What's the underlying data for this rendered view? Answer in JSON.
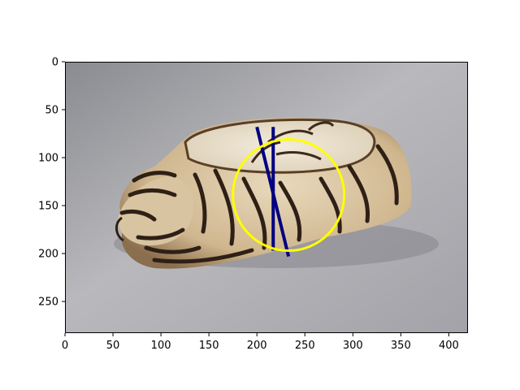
{
  "chart_data": {
    "type": "scatter",
    "title": "",
    "xlabel": "",
    "ylabel": "",
    "xlim": [
      0,
      420
    ],
    "ylim": [
      283,
      0
    ],
    "y_inverted": true,
    "x_ticks": [
      0,
      50,
      100,
      150,
      200,
      250,
      300,
      350,
      400
    ],
    "y_ticks": [
      0,
      50,
      100,
      150,
      200,
      250
    ],
    "grid": false,
    "legend": "none",
    "background_image": {
      "description_name": "ceramic-tiger-pillow-photo",
      "extent": [
        0,
        420,
        283,
        0
      ]
    },
    "overlays": {
      "circle": {
        "name": "yellow-circle",
        "center": [
          233,
          139
        ],
        "radius": 58,
        "color": "#ffff00"
      },
      "lines": [
        {
          "name": "navy-line-vertical",
          "x": [
            217,
            217
          ],
          "y": [
            68,
            197
          ],
          "color": "#000080"
        },
        {
          "name": "navy-line-diagonal",
          "x": [
            200,
            233
          ],
          "y": [
            68,
            203
          ],
          "color": "#000080"
        }
      ]
    }
  }
}
